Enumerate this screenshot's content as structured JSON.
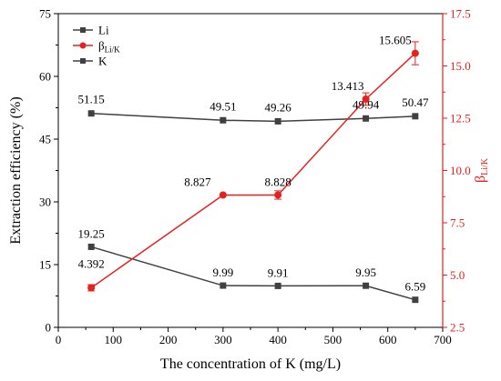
{
  "chart_data": {
    "type": "line",
    "x_axis": {
      "label": "The concentration of K (mg/L)",
      "range": [
        0,
        700
      ],
      "ticks": [
        0,
        100,
        200,
        300,
        400,
        500,
        600,
        700
      ],
      "tick_labels": [
        "0",
        "100",
        "200",
        "300",
        "400",
        "500",
        "600",
        "700"
      ]
    },
    "y_left": {
      "label": "Extraction efficiency (%)",
      "range": [
        0,
        75
      ],
      "ticks": [
        0,
        15,
        30,
        45,
        60,
        75
      ],
      "tick_labels": [
        "0",
        "15",
        "30",
        "45",
        "60",
        "75"
      ]
    },
    "y_right": {
      "label_main": "β",
      "label_sub": "Li/K",
      "range": [
        2.5,
        17.5
      ],
      "ticks": [
        2.5,
        5.0,
        7.5,
        10.0,
        12.5,
        15.0,
        17.5
      ],
      "tick_labels": [
        "2.5",
        "5.0",
        "7.5",
        "10.0",
        "12.5",
        "15.0",
        "17.5"
      ],
      "color": "#e8201f"
    },
    "legend": {
      "position": "top-left",
      "entries": [
        {
          "key": "li",
          "main": "Li",
          "sub": ""
        },
        {
          "key": "beta",
          "main": "β",
          "sub": "Li/K"
        },
        {
          "key": "k",
          "main": "K",
          "sub": ""
        }
      ]
    },
    "series": [
      {
        "key": "li",
        "axis": "left",
        "color": "#404040",
        "marker": "square",
        "x": [
          60,
          300,
          400,
          560,
          650
        ],
        "y": [
          19.25,
          9.99,
          9.91,
          9.95,
          6.59
        ],
        "labels": [
          "19.25",
          "9.99",
          "9.91",
          "9.95",
          "6.59"
        ]
      },
      {
        "key": "k",
        "axis": "left",
        "color": "#404040",
        "marker": "square",
        "x": [
          60,
          300,
          400,
          560,
          650
        ],
        "y": [
          51.15,
          49.51,
          49.26,
          49.94,
          50.47
        ],
        "labels": [
          "51.15",
          "49.51",
          "49.26",
          "49.94",
          "50.47"
        ]
      },
      {
        "key": "beta",
        "axis": "right",
        "color": "#e8201f",
        "marker": "circle",
        "x": [
          60,
          300,
          400,
          560,
          650
        ],
        "y": [
          4.392,
          8.827,
          8.828,
          13.413,
          15.605
        ],
        "error": [
          0.15,
          0.0,
          0.2,
          0.3,
          0.55
        ],
        "labels": [
          "4.392",
          "8.827",
          "8.828",
          "13.413",
          "15.605"
        ]
      }
    ]
  }
}
